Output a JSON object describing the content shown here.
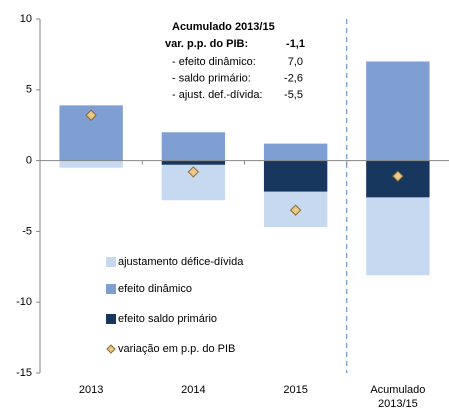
{
  "chart_data": {
    "type": "bar",
    "stacked": true,
    "categories": [
      "2013",
      "2014",
      "2015",
      "Acumulado 2013/15"
    ],
    "series": [
      {
        "name": "ajustamento défice-dívida",
        "color": "#c6d9f1",
        "values": [
          -0.5,
          -2.5,
          -2.5,
          -5.5
        ]
      },
      {
        "name": "efeito dinâmico",
        "color": "#7f9ed2",
        "values": [
          3.9,
          2.0,
          1.2,
          7.0
        ]
      },
      {
        "name": "efeito saldo primário",
        "color": "#17375e",
        "values": [
          0,
          -0.3,
          -2.2,
          -2.6
        ]
      },
      {
        "name": "variação em p.p. do PIB",
        "color": "#e6c98b",
        "marker": "diamond",
        "values": [
          3.2,
          -0.8,
          -3.5,
          -1.1
        ]
      }
    ],
    "ylim": [
      -15,
      10
    ],
    "yticks": [
      -15,
      -10,
      -5,
      0,
      5,
      10
    ],
    "annotation": {
      "title": "Acumulado 2013/15",
      "total_label": "var. p.p. do PIB:",
      "total_value": "-1,1",
      "lines": [
        {
          "label": "- efeito dinâmico:",
          "value": "7,0"
        },
        {
          "label": "- saldo primário:",
          "value": "-2,6"
        },
        {
          "label": "- ajust. def.-dívida:",
          "value": "-5,5"
        }
      ]
    }
  }
}
